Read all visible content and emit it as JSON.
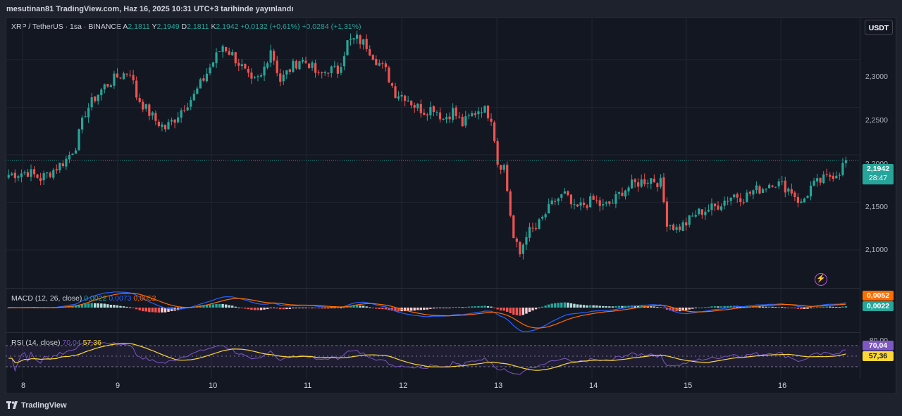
{
  "header": {
    "publisher_text": "mesutinan81 TradingView.com, Haz 16, 2025 10:31 UTC+3 tarihinde yayınlandı"
  },
  "symbol": {
    "name": "XRP / TetherUS · 1sa · BINANCE",
    "o_label": "A",
    "o_value": "2,1811",
    "h_label": "Y",
    "h_value": "2,1949",
    "l_label": "D",
    "l_value": "2,1811",
    "c_label": "K",
    "c_value": "2,1942",
    "change": "+0,0132 (+0,61%)",
    "change2": "+0,0284 (+1,31%)"
  },
  "currency_button": "USDT",
  "macd": {
    "label": "MACD (12, 26, close)",
    "hist": "0,0022",
    "macd": "0,0073",
    "signal": "0,0052",
    "badge_top": "0,0052",
    "badge_bottom": "0,0022"
  },
  "rsi": {
    "label": "RSI (14, close)",
    "rsi": "70,04",
    "ma": "57,36",
    "axis_80": "80,00",
    "badge_top": "70,04",
    "badge_bottom": "57,36"
  },
  "price_badge": {
    "price": "2,1942",
    "countdown": "28:47"
  },
  "colors": {
    "up": "#26a69a",
    "down": "#ef5350",
    "background": "#131722",
    "macd_line": "#2962ff",
    "signal_line": "#ff6d00",
    "rsi_line": "#7e57c2",
    "rsi_ma": "#fdd835"
  },
  "footer": {
    "brand": "TradingView"
  },
  "chart_data": {
    "type": "candlestick",
    "interval": "1h",
    "x_ticks": [
      "8",
      "9",
      "10",
      "11",
      "12",
      "13",
      "14",
      "15",
      "16"
    ],
    "y_ticks": [
      "2,3000",
      "2,2500",
      "2,2000",
      "2,1500",
      "2,1000"
    ],
    "ylim": [
      2.06,
      2.345
    ],
    "last_price": 2.1942,
    "close_path": [
      [
        0,
        2.179
      ],
      [
        6,
        2.182
      ],
      [
        10,
        2.175
      ],
      [
        14,
        2.184
      ],
      [
        18,
        2.195
      ],
      [
        21,
        2.21
      ],
      [
        24,
        2.245
      ],
      [
        27,
        2.26
      ],
      [
        30,
        2.272
      ],
      [
        34,
        2.282
      ],
      [
        38,
        2.288
      ],
      [
        40,
        2.262
      ],
      [
        43,
        2.248
      ],
      [
        46,
        2.236
      ],
      [
        49,
        2.228
      ],
      [
        52,
        2.238
      ],
      [
        55,
        2.252
      ],
      [
        58,
        2.262
      ],
      [
        61,
        2.28
      ],
      [
        64,
        2.298
      ],
      [
        67,
        2.315
      ],
      [
        70,
        2.305
      ],
      [
        73,
        2.292
      ],
      [
        76,
        2.275
      ],
      [
        79,
        2.282
      ],
      [
        82,
        2.312
      ],
      [
        85,
        2.278
      ],
      [
        88,
        2.29
      ],
      [
        91,
        2.3
      ],
      [
        94,
        2.296
      ],
      [
        97,
        2.282
      ],
      [
        100,
        2.29
      ],
      [
        103,
        2.288
      ],
      [
        106,
        2.318
      ],
      [
        109,
        2.322
      ],
      [
        112,
        2.315
      ],
      [
        115,
        2.3
      ],
      [
        118,
        2.288
      ],
      [
        121,
        2.265
      ],
      [
        124,
        2.262
      ],
      [
        127,
        2.252
      ],
      [
        130,
        2.246
      ],
      [
        133,
        2.25
      ],
      [
        136,
        2.238
      ],
      [
        139,
        2.246
      ],
      [
        142,
        2.232
      ],
      [
        145,
        2.242
      ],
      [
        148,
        2.25
      ],
      [
        151,
        2.24
      ],
      [
        152,
        2.218
      ],
      [
        153,
        2.192
      ],
      [
        155,
        2.188
      ],
      [
        158,
        2.112
      ],
      [
        160,
        2.095
      ],
      [
        162,
        2.118
      ],
      [
        165,
        2.122
      ],
      [
        168,
        2.138
      ],
      [
        171,
        2.152
      ],
      [
        174,
        2.158
      ],
      [
        177,
        2.142
      ],
      [
        180,
        2.148
      ],
      [
        183,
        2.152
      ],
      [
        186,
        2.145
      ],
      [
        189,
        2.15
      ],
      [
        192,
        2.162
      ],
      [
        195,
        2.168
      ],
      [
        198,
        2.172
      ],
      [
        201,
        2.175
      ],
      [
        204,
        2.17
      ],
      [
        206,
        2.13
      ],
      [
        209,
        2.122
      ],
      [
        212,
        2.128
      ],
      [
        215,
        2.138
      ],
      [
        218,
        2.142
      ],
      [
        221,
        2.145
      ],
      [
        224,
        2.152
      ],
      [
        227,
        2.158
      ],
      [
        230,
        2.155
      ],
      [
        233,
        2.162
      ],
      [
        236,
        2.165
      ],
      [
        239,
        2.172
      ],
      [
        242,
        2.168
      ],
      [
        245,
        2.162
      ],
      [
        248,
        2.148
      ],
      [
        251,
        2.166
      ],
      [
        254,
        2.172
      ],
      [
        257,
        2.178
      ],
      [
        260,
        2.183
      ],
      [
        262,
        2.1942
      ]
    ]
  }
}
